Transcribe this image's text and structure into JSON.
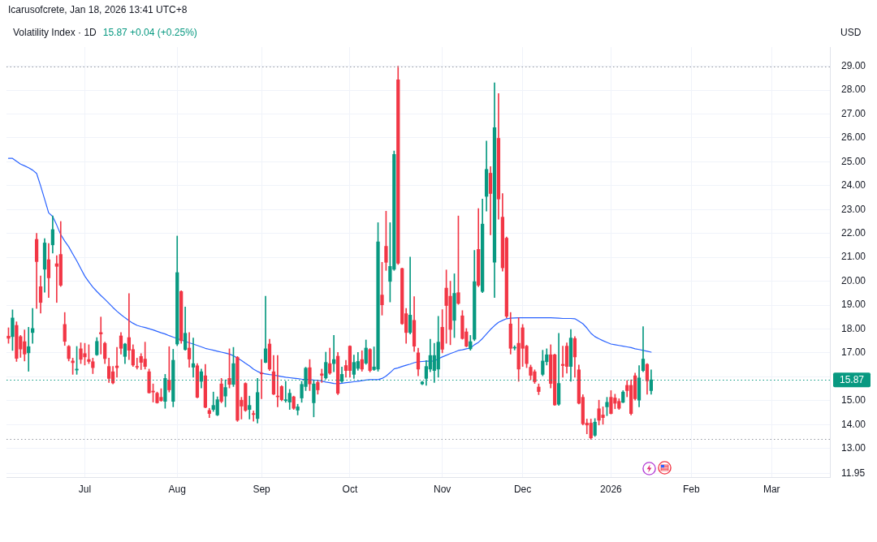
{
  "chart_data": {
    "type": "candlestick",
    "title": "Volatility Index · 1D",
    "subtitle": "15.87 +0.04 (+0.25%)",
    "ylabel": "USD",
    "annotations": [
      "Icarusofcrete, Jan 18, 2026 13:41 UTC+8"
    ],
    "categories": [
      null,
      null,
      null,
      null,
      null,
      null,
      null,
      null,
      null,
      null,
      null,
      null,
      null,
      null,
      null,
      null,
      null,
      null,
      null,
      "Jul",
      null,
      null,
      null,
      null,
      null,
      null,
      null,
      null,
      null,
      null,
      null,
      null,
      null,
      null,
      null,
      null,
      null,
      null,
      null,
      null,
      null,
      null,
      "Aug",
      null,
      null,
      null,
      null,
      null,
      null,
      null,
      null,
      null,
      null,
      null,
      null,
      null,
      null,
      null,
      null,
      null,
      null,
      null,
      null,
      "Sep",
      null,
      null,
      null,
      null,
      null,
      null,
      null,
      null,
      null,
      null,
      null,
      null,
      null,
      null,
      null,
      null,
      null,
      null,
      null,
      null,
      null,
      "Oct",
      null,
      null,
      null,
      null,
      null,
      null,
      null,
      null,
      null,
      null,
      null,
      null,
      null,
      null,
      null,
      null,
      null,
      null,
      null,
      null,
      null,
      null,
      "Nov",
      null,
      null,
      null,
      null,
      null,
      null,
      null,
      null,
      null,
      null,
      null,
      null,
      null,
      null,
      null,
      null,
      null,
      null,
      null,
      "Dec",
      null,
      null,
      null,
      null,
      null,
      null,
      null,
      null,
      null,
      null,
      null,
      null,
      null,
      null,
      null,
      null,
      null,
      null,
      null,
      null,
      null,
      "2026",
      null,
      null,
      null,
      null,
      null,
      null,
      null,
      null,
      null,
      null,
      null,
      null,
      null,
      null,
      null,
      null,
      null,
      null,
      null,
      "Feb",
      null,
      null,
      null,
      null,
      null,
      null,
      null,
      null,
      null,
      null,
      null,
      null,
      null,
      null,
      null,
      null,
      null,
      null,
      null,
      "Mar",
      null,
      null,
      null,
      null,
      null,
      null,
      null,
      null,
      null,
      null,
      null,
      null,
      null,
      null
    ],
    "ohlc": [
      [
        17.7,
        18.05,
        17.4,
        17.61
      ],
      [
        17.68,
        18.8,
        17.1,
        18.46
      ],
      [
        18.15,
        18.3,
        16.64,
        16.77
      ],
      [
        17.68,
        17.73,
        16.81,
        17.16
      ],
      [
        17.47,
        17.96,
        16.66,
        16.95
      ],
      [
        17.0,
        18.07,
        16.23,
        17.26
      ],
      [
        17.85,
        18.86,
        17.4,
        18.02
      ],
      [
        21.75,
        22.0,
        18.86,
        20.82
      ],
      [
        19.77,
        20.22,
        18.66,
        19.11
      ],
      [
        20.5,
        21.78,
        19.54,
        21.6
      ],
      [
        20.9,
        21.58,
        19.32,
        20.14
      ],
      [
        21.52,
        22.73,
        21.18,
        22.16
      ],
      [
        20.73,
        21.07,
        19.11,
        20.62
      ],
      [
        21.12,
        22.5,
        19.78,
        19.83
      ],
      [
        18.19,
        18.69,
        17.31,
        17.48
      ],
      [
        17.27,
        17.31,
        16.66,
        16.76
      ],
      [
        16.66,
        16.78,
        16.1,
        16.59
      ],
      [
        16.28,
        17.27,
        16.1,
        16.32
      ],
      [
        17.17,
        17.42,
        16.55,
        16.73
      ],
      [
        16.97,
        17.4,
        16.49,
        16.83
      ],
      [
        16.72,
        17.34,
        16.55,
        16.64
      ],
      [
        16.63,
        16.78,
        16.13,
        16.38
      ],
      [
        16.92,
        17.64,
        16.89,
        17.48
      ],
      [
        17.85,
        18.5,
        16.95,
        17.79
      ],
      [
        17.4,
        17.45,
        16.55,
        16.76
      ],
      [
        16.43,
        16.78,
        15.76,
        15.93
      ],
      [
        16.21,
        16.43,
        15.7,
        15.74
      ],
      [
        16.45,
        17.23,
        15.98,
        16.38
      ],
      [
        17.71,
        17.85,
        16.95,
        17.19
      ],
      [
        16.85,
        17.4,
        16.55,
        17.37
      ],
      [
        17.64,
        19.48,
        16.72,
        17.11
      ],
      [
        17.14,
        17.34,
        16.43,
        16.49
      ],
      [
        16.43,
        16.78,
        16.32,
        16.4
      ],
      [
        16.85,
        16.97,
        16.3,
        16.6
      ],
      [
        16.74,
        17.45,
        16.32,
        16.43
      ],
      [
        16.21,
        16.32,
        15.31,
        15.33
      ],
      [
        15.4,
        15.7,
        14.94,
        15.36
      ],
      [
        15.31,
        15.36,
        14.89,
        14.91
      ],
      [
        15.14,
        15.5,
        14.97,
        15.0
      ],
      [
        14.97,
        16.1,
        14.68,
        15.93
      ],
      [
        15.85,
        17.26,
        15.36,
        15.45
      ],
      [
        14.97,
        17.15,
        14.74,
        16.69
      ],
      [
        17.37,
        21.89,
        17.3,
        20.36
      ],
      [
        19.57,
        19.6,
        17.4,
        17.51
      ],
      [
        17.14,
        18.92,
        17.11,
        17.82
      ],
      [
        17.2,
        17.85,
        16.4,
        16.74
      ],
      [
        16.4,
        17.62,
        15.98,
        16.55
      ],
      [
        16.46,
        16.55,
        15.11,
        15.14
      ],
      [
        15.81,
        16.32,
        15.53,
        16.21
      ],
      [
        16.04,
        16.52,
        14.7,
        14.72
      ],
      [
        14.59,
        14.68,
        14.29,
        14.46
      ],
      [
        14.63,
        15.36,
        14.55,
        14.8
      ],
      [
        14.4,
        15.16,
        14.37,
        15.04
      ],
      [
        15.7,
        15.93,
        14.91,
        14.97
      ],
      [
        15.19,
        15.87,
        14.74,
        15.55
      ],
      [
        15.93,
        17.17,
        15.53,
        15.68
      ],
      [
        15.68,
        17.23,
        15.59,
        16.55
      ],
      [
        16.81,
        16.85,
        14.13,
        14.18
      ],
      [
        15.02,
        15.14,
        14.23,
        14.77
      ],
      [
        15.72,
        15.75,
        14.55,
        14.59
      ],
      [
        14.63,
        15.19,
        14.23,
        14.8
      ],
      [
        14.46,
        14.57,
        14.14,
        14.42
      ],
      [
        14.25,
        15.93,
        14.06,
        15.34
      ],
      [
        16.15,
        16.72,
        15.08,
        16.12
      ],
      [
        16.6,
        19.37,
        16.58,
        17.17
      ],
      [
        17.37,
        17.57,
        16.26,
        16.32
      ],
      [
        16.21,
        16.89,
        15.25,
        15.27
      ],
      [
        15.19,
        16.89,
        14.74,
        15.16
      ],
      [
        15.59,
        15.63,
        14.99,
        15.04
      ],
      [
        15.0,
        15.81,
        14.93,
        15.04
      ],
      [
        14.94,
        15.47,
        14.63,
        15.31
      ],
      [
        15.16,
        15.19,
        14.63,
        14.68
      ],
      [
        14.6,
        14.85,
        14.4,
        14.74
      ],
      [
        15.11,
        15.81,
        14.93,
        15.68
      ],
      [
        15.59,
        16.4,
        15.42,
        16.36
      ],
      [
        16.38,
        16.72,
        15.42,
        15.7
      ],
      [
        14.91,
        15.84,
        14.32,
        15.7
      ],
      [
        15.76,
        15.84,
        15.27,
        15.45
      ],
      [
        16.12,
        16.32,
        15.76,
        16.06
      ],
      [
        15.95,
        17.03,
        15.9,
        16.6
      ],
      [
        16.55,
        17.2,
        16.1,
        16.15
      ],
      [
        16.55,
        17.73,
        16.21,
        16.72
      ],
      [
        16.86,
        17.02,
        15.25,
        15.31
      ],
      [
        15.81,
        16.41,
        15.76,
        16.1
      ],
      [
        16.47,
        16.69,
        15.98,
        16.26
      ],
      [
        17.28,
        17.3,
        15.98,
        16.26
      ],
      [
        16.1,
        16.91,
        15.93,
        16.6
      ],
      [
        16.35,
        17.02,
        16.27,
        16.64
      ],
      [
        16.72,
        17.09,
        16.23,
        16.32
      ],
      [
        16.57,
        17.54,
        16.52,
        17.2
      ],
      [
        17.14,
        17.18,
        16.2,
        16.26
      ],
      [
        16.3,
        17.25,
        16.26,
        16.41
      ],
      [
        16.32,
        22.45,
        16.23,
        21.65
      ],
      [
        19.42,
        20.79,
        18.58,
        19.01
      ],
      [
        21.46,
        22.93,
        20.45,
        20.79
      ],
      [
        19.99,
        22.45,
        19.13,
        20.62
      ],
      [
        20.5,
        25.45,
        20.45,
        25.31
      ],
      [
        28.43,
        29.0,
        20.7,
        20.75
      ],
      [
        20.53,
        20.55,
        18.19,
        18.22
      ],
      [
        18.64,
        18.86,
        17.4,
        17.85
      ],
      [
        17.85,
        21.01,
        17.79,
        18.58
      ],
      [
        18.36,
        19.35,
        17.06,
        17.28
      ],
      [
        17.0,
        17.2,
        16.04,
        16.32
      ],
      [
        15.7,
        15.81,
        15.67,
        15.78
      ],
      [
        15.93,
        16.68,
        15.64,
        16.43
      ],
      [
        16.32,
        17.57,
        16.21,
        16.89
      ],
      [
        16.26,
        17.4,
        15.76,
        16.89
      ],
      [
        16.32,
        18.53,
        15.98,
        17.45
      ],
      [
        18.07,
        18.81,
        17.0,
        17.15
      ],
      [
        19.71,
        20.47,
        17.4,
        18.98
      ],
      [
        19.37,
        20.0,
        17.34,
        17.98
      ],
      [
        18.36,
        20.31,
        17.64,
        19.49
      ],
      [
        19.52,
        22.73,
        19.03,
        19.07
      ],
      [
        18.55,
        18.77,
        17.57,
        17.6
      ],
      [
        17.88,
        18.02,
        17.25,
        17.28
      ],
      [
        17.17,
        17.73,
        17.11,
        17.47
      ],
      [
        17.57,
        21.29,
        17.51,
        19.98
      ],
      [
        21.33,
        23.04,
        19.77,
        19.83
      ],
      [
        19.57,
        23.44,
        19.52,
        22.39
      ],
      [
        23.55,
        25.87,
        22.93,
        24.68
      ],
      [
        24.52,
        24.8,
        21.94,
        23.67
      ],
      [
        20.79,
        28.3,
        19.32,
        26.43
      ],
      [
        25.98,
        27.85,
        22.59,
        23.44
      ],
      [
        22.68,
        23.67,
        20.42,
        20.56
      ],
      [
        21.8,
        21.85,
        18.47,
        18.53
      ],
      [
        18.21,
        18.69,
        16.95,
        17.19
      ],
      [
        17.2,
        17.3,
        17.12,
        17.23
      ],
      [
        17.4,
        18.47,
        15.81,
        16.32
      ],
      [
        18.05,
        18.19,
        16.43,
        17.19
      ],
      [
        17.28,
        17.32,
        16.38,
        16.55
      ],
      [
        16.4,
        16.49,
        15.87,
        16.06
      ],
      [
        16.21,
        16.29,
        15.72,
        15.79
      ],
      [
        15.57,
        15.7,
        15.25,
        15.38
      ],
      [
        16.1,
        17.11,
        16.04,
        16.66
      ],
      [
        16.63,
        17.17,
        16.49,
        16.92
      ],
      [
        16.92,
        17.34,
        15.53,
        15.72
      ],
      [
        16.92,
        16.95,
        14.8,
        14.82
      ],
      [
        14.85,
        17.82,
        14.8,
        15.72
      ],
      [
        16.52,
        17.28,
        15.98,
        16.47
      ],
      [
        17.28,
        17.42,
        16.15,
        16.43
      ],
      [
        16.43,
        17.98,
        15.81,
        17.62
      ],
      [
        17.6,
        17.68,
        15.98,
        16.83
      ],
      [
        16.29,
        16.49,
        14.86,
        14.89
      ],
      [
        15.14,
        15.25,
        13.98,
        14.03
      ],
      [
        14.06,
        14.23,
        13.61,
        13.98
      ],
      [
        14.06,
        14.23,
        13.38,
        13.44
      ],
      [
        13.55,
        14.25,
        13.5,
        14.1
      ],
      [
        14.66,
        15.02,
        13.98,
        14.18
      ],
      [
        14.4,
        14.74,
        14.01,
        14.29
      ],
      [
        14.74,
        15.14,
        14.37,
        14.93
      ],
      [
        15.14,
        15.42,
        14.44,
        14.46
      ],
      [
        15.11,
        15.27,
        14.66,
        14.89
      ],
      [
        14.97,
        15.08,
        14.63,
        14.68
      ],
      [
        14.93,
        15.42,
        14.91,
        15.36
      ],
      [
        15.64,
        15.84,
        15.16,
        15.42
      ],
      [
        15.64,
        15.87,
        14.4,
        14.46
      ],
      [
        16.04,
        16.15,
        15.02,
        15.08
      ],
      [
        15.02,
        16.47,
        14.74,
        15.95
      ],
      [
        16.26,
        18.1,
        16.21,
        16.74
      ],
      [
        16.52,
        16.55,
        15.27,
        15.83
      ],
      [
        15.42,
        16.29,
        15.27,
        15.87
      ],
      null,
      null,
      null,
      null,
      null,
      null,
      null,
      null,
      null,
      null,
      null,
      null,
      null,
      null,
      null,
      null,
      null,
      null,
      null,
      null,
      null,
      null,
      null,
      null,
      null,
      null,
      null,
      null,
      null,
      null,
      null,
      null,
      null,
      null,
      null,
      null,
      null,
      null,
      null,
      null,
      null,
      null,
      null,
      null
    ],
    "colors": [
      "#f23645",
      "#089981",
      "#f23645",
      "#f23645",
      "#f23645",
      "#089981",
      "#089981",
      "#f23645",
      "#f23645",
      "#089981",
      "#f23645",
      "#089981",
      "#f23645",
      "#f23645",
      "#f23645",
      "#f23645",
      "#f23645",
      "#089981",
      "#f23645",
      "#f23645",
      "#f23645",
      "#f23645",
      "#089981",
      "#f23645",
      "#f23645",
      "#f23645",
      "#f23645",
      "#f23645",
      "#f23645",
      "#089981",
      "#f23645",
      "#f23645",
      "#f23645",
      "#f23645",
      "#f23645",
      "#f23645",
      "#f23645",
      "#f23645",
      "#f23645",
      "#089981",
      "#f23645",
      "#089981",
      "#089981",
      "#f23645",
      "#089981",
      "#f23645",
      "#089981",
      "#f23645",
      "#089981",
      "#f23645",
      "#f23645",
      "#089981",
      "#089981",
      "#f23645",
      "#089981",
      "#f23645",
      "#089981",
      "#f23645",
      "#f23645",
      "#f23645",
      "#089981",
      "#f23645",
      "#089981",
      "#f23645",
      "#089981",
      "#f23645",
      "#f23645",
      "#f23645",
      "#f23645",
      "#089981",
      "#089981",
      "#f23645",
      "#089981",
      "#089981",
      "#089981",
      "#f23645",
      "#089981",
      "#f23645",
      "#f23645",
      "#089981",
      "#f23645",
      "#089981",
      "#f23645",
      "#089981",
      "#f23645",
      "#f23645",
      "#089981",
      "#089981",
      "#f23645",
      "#089981",
      "#f23645",
      "#089981",
      "#089981",
      "#f23645",
      "#f23645",
      "#089981",
      "#089981",
      "#f23645",
      "#f23645",
      "#f23645",
      "#089981",
      "#f23645",
      "#f23645",
      "#089981",
      "#089981",
      "#089981",
      "#089981",
      "#089981",
      "#f23645",
      "#f23645",
      "#f23645",
      "#089981",
      "#f23645",
      "#f23645",
      "#f23645",
      "#089981",
      "#089981",
      "#f23645",
      "#089981",
      "#089981",
      "#f23645",
      "#089981",
      "#f23645",
      "#f23645",
      "#f23645",
      "#f23645",
      "#089981",
      "#f23645",
      "#f23645",
      "#f23645",
      "#f23645",
      "#f23645",
      "#f23645",
      "#089981",
      "#089981",
      "#f23645",
      "#f23645",
      "#089981",
      "#f23645",
      "#f23645",
      "#089981",
      "#f23645",
      "#f23645",
      "#f23645",
      "#f23645",
      "#f23645",
      "#089981",
      "#f23645",
      "#f23645",
      "#089981",
      "#f23645",
      "#f23645",
      "#f23645",
      "#089981",
      "#f23645",
      "#f23645",
      "#f23645",
      "#089981",
      "#089981",
      "#f23645",
      "#089981",
      null,
      null,
      null,
      null,
      null,
      null,
      null,
      null,
      null,
      null,
      null,
      null,
      null,
      null,
      null,
      null,
      null,
      null,
      null,
      null,
      null,
      null,
      null,
      null,
      null,
      null,
      null,
      null,
      null,
      null,
      null,
      null,
      null,
      null,
      null,
      null,
      null,
      null,
      null,
      null,
      null,
      null,
      null,
      null
    ],
    "series": [
      {
        "type": "line",
        "color": "#2962ff",
        "values": [
          25.14,
          25.14,
          25.02,
          24.9,
          24.83,
          24.75,
          24.65,
          24.51,
          23.99,
          23.43,
          22.86,
          22.71,
          22.35,
          21.95,
          21.68,
          21.44,
          21.14,
          20.85,
          20.53,
          20.21,
          19.97,
          19.75,
          19.57,
          19.4,
          19.24,
          19.07,
          18.9,
          18.74,
          18.6,
          18.47,
          18.35,
          18.24,
          18.15,
          18.1,
          18.06,
          18.01,
          17.96,
          17.9,
          17.84,
          17.79,
          17.72,
          17.66,
          17.6,
          null,
          17.48,
          17.42,
          17.37,
          17.31,
          17.25,
          17.19,
          17.15,
          17.11,
          17.07,
          17.03,
          16.99,
          16.95,
          16.88,
          16.78,
          16.68,
          16.56,
          16.45,
          16.32,
          16.22,
          16.15,
          16.12,
          16.09,
          16.07,
          16.04,
          16.01,
          15.98,
          15.96,
          15.94,
          15.92,
          15.9,
          15.89,
          15.88,
          15.86,
          15.85,
          15.82,
          15.78,
          15.75,
          15.72,
          15.71,
          15.73,
          15.75,
          15.77,
          15.79,
          15.81,
          15.84,
          15.86,
          15.88,
          15.88,
          15.88,
          15.93,
          16.03,
          16.17,
          16.33,
          16.37,
          16.43,
          16.48,
          16.53,
          16.59,
          16.63,
          16.64,
          16.65,
          16.65,
          16.66,
          16.75,
          16.83,
          16.9,
          16.97,
          17.03,
          17.1,
          17.13,
          17.17,
          17.2,
          17.34,
          17.44,
          17.6,
          17.79,
          17.98,
          18.14,
          18.28,
          18.36,
          18.43,
          18.45,
          18.46,
          18.47,
          18.47,
          18.47,
          18.47,
          18.47,
          18.47,
          18.47,
          18.47,
          18.47,
          18.46,
          18.45,
          18.44,
          18.44,
          18.44,
          18.43,
          18.33,
          18.22,
          18.04,
          17.82,
          17.68,
          17.59,
          17.51,
          17.44,
          17.37,
          17.34,
          17.31,
          17.28,
          17.25,
          17.22,
          17.17,
          17.14,
          17.1,
          17.07,
          17.03,
          null,
          null,
          null,
          null,
          null,
          null,
          null,
          null,
          null,
          null,
          null,
          null,
          null,
          null,
          null,
          null,
          null,
          null,
          null,
          null,
          null,
          null,
          null,
          null,
          null,
          null,
          null,
          null,
          null,
          null,
          null,
          null,
          null,
          null,
          null,
          null,
          null,
          null,
          null,
          null,
          null,
          null,
          null,
          null
        ]
      }
    ],
    "ylim": [
      11.8,
      29.8
    ],
    "yticks": [
      {
        "value": 11.95,
        "label": "11.95"
      },
      {
        "value": 13,
        "label": "13.00"
      },
      {
        "value": 14,
        "label": "14.00"
      },
      {
        "value": 15,
        "label": "15.00"
      },
      {
        "value": 16,
        "label": null
      },
      {
        "value": 17,
        "label": "17.00"
      },
      {
        "value": 18,
        "label": "18.00"
      },
      {
        "value": 19,
        "label": "19.00"
      },
      {
        "value": 20,
        "label": "20.00"
      },
      {
        "value": 21,
        "label": "21.00"
      },
      {
        "value": 22,
        "label": "22.00"
      },
      {
        "value": 23,
        "label": "23.00"
      },
      {
        "value": 24,
        "label": "24.00"
      },
      {
        "value": 25,
        "label": "25.00"
      },
      {
        "value": 26,
        "label": "26.00"
      },
      {
        "value": 27,
        "label": "27.00"
      },
      {
        "value": 28,
        "label": "28.00"
      },
      {
        "value": 29,
        "label": "29.00"
      }
    ],
    "ref_lines": [
      {
        "axis": "y",
        "value": 29,
        "color": "#9598a1",
        "line_style": "dotted"
      },
      {
        "axis": "y",
        "value": 13.38,
        "color": "#9598a1",
        "line_style": "dotted"
      },
      {
        "axis": "y",
        "value": 15.87,
        "label": "15.87",
        "color": "#089981",
        "line_style": "dotted"
      }
    ],
    "grid": true
  }
}
